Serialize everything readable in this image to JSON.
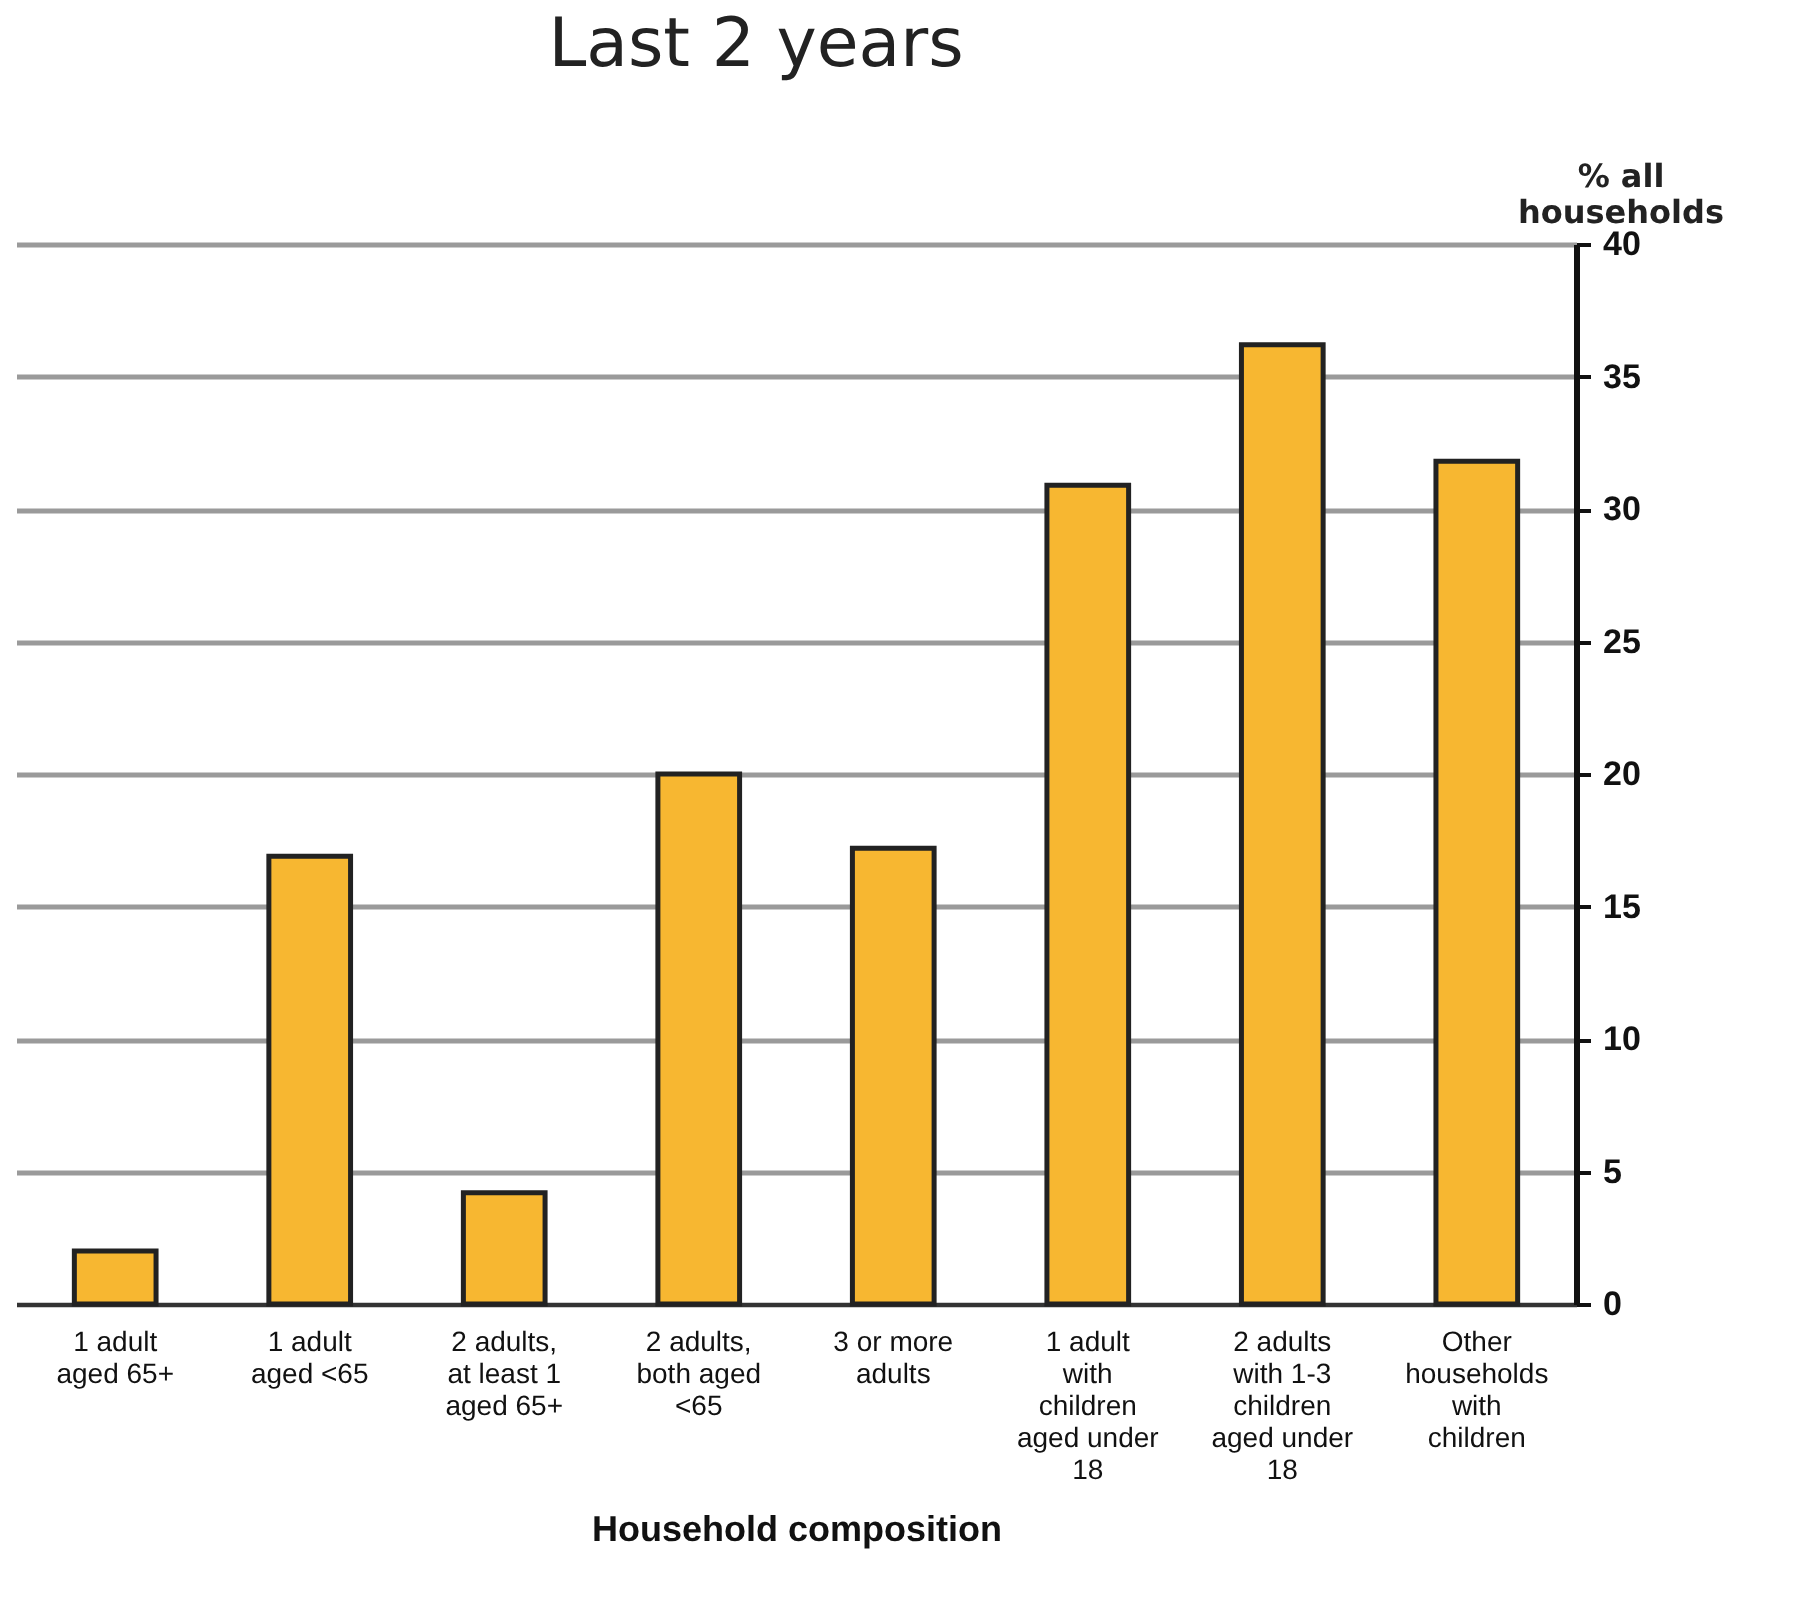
{
  "chart_data": {
    "type": "bar",
    "title": "Last 2 years",
    "xlabel": "Household composition",
    "ylabel": "% all households",
    "categories": [
      "1 adult aged 65+",
      "1 adult aged <65",
      "2 adults, at least 1 aged 65+",
      "2 adults, both aged <65",
      "3 or more adults",
      "1 adult with children aged under 18",
      "2 adults with 1-3 children aged under 18",
      "Other households with children"
    ],
    "values": [
      2,
      16.9,
      4.2,
      20,
      17.2,
      30.9,
      36.2,
      31.8
    ],
    "color": "#f7b731",
    "ylim": [
      0,
      40
    ],
    "yticks": [
      0,
      5,
      10,
      15,
      20,
      25,
      30,
      35,
      40
    ],
    "grid": "y"
  }
}
